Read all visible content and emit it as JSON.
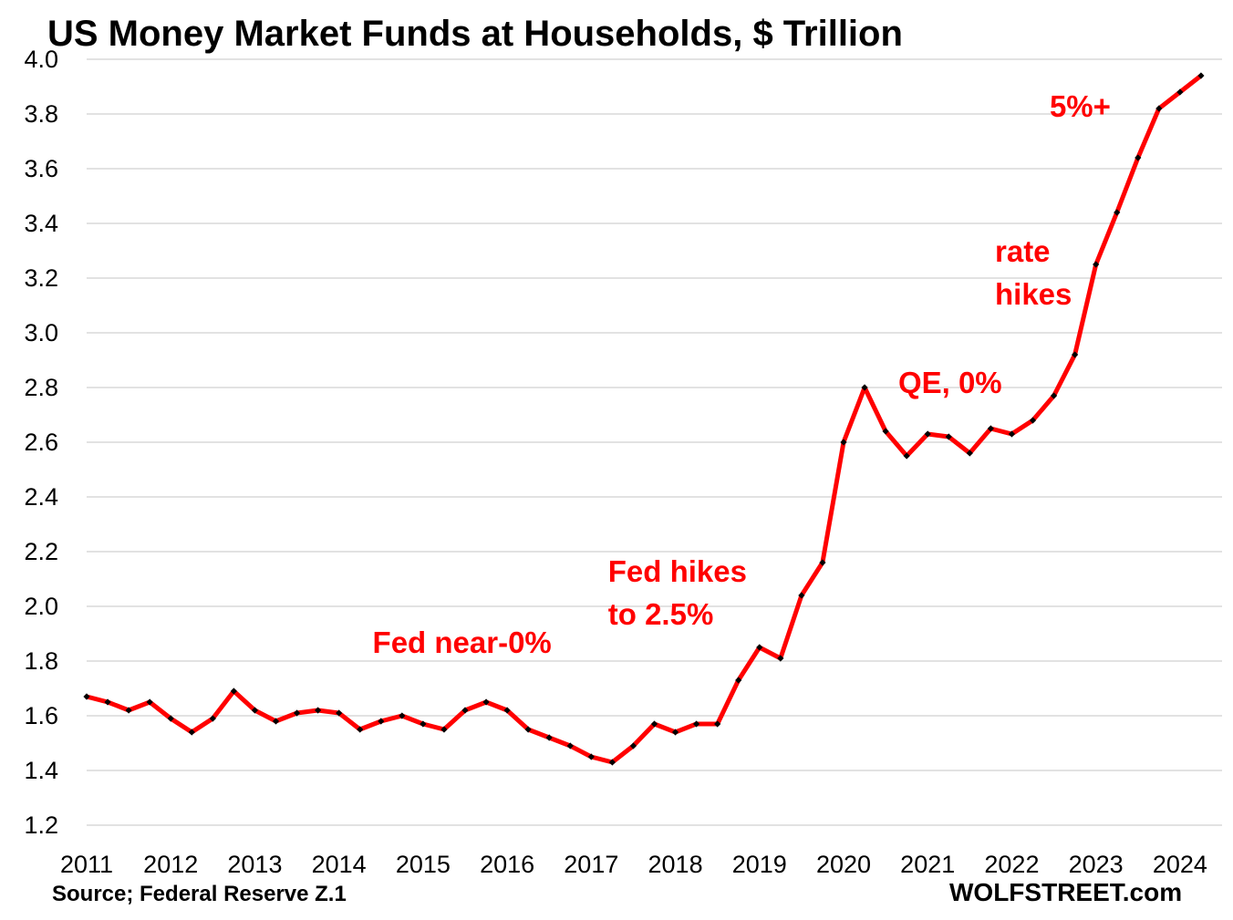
{
  "chart_data": {
    "type": "line",
    "title": "US Money Market Funds at Households, $ Trillion",
    "xlabel": "",
    "ylabel": "",
    "ylim": [
      1.2,
      4.0
    ],
    "yticks": [
      "1.2",
      "1.4",
      "1.6",
      "1.8",
      "2.0",
      "2.2",
      "2.4",
      "2.6",
      "2.8",
      "3.0",
      "3.2",
      "3.4",
      "3.6",
      "3.8",
      "4.0"
    ],
    "xlim": [
      2011,
      2024.5
    ],
    "xticks": [
      "2011",
      "2012",
      "2013",
      "2014",
      "2015",
      "2016",
      "2017",
      "2018",
      "2019",
      "2020",
      "2021",
      "2022",
      "2023",
      "2024"
    ],
    "grid": "horizontal",
    "line_color": "#ff0000",
    "marker_color": "#000000",
    "series": [
      {
        "x": [
          2011.0,
          2011.25,
          2011.5,
          2011.75,
          2012.0,
          2012.25,
          2012.5,
          2012.75,
          2013.0,
          2013.25,
          2013.5,
          2013.75,
          2014.0,
          2014.25,
          2014.5,
          2014.75,
          2015.0,
          2015.25,
          2015.5,
          2015.75,
          2016.0,
          2016.25,
          2016.5,
          2016.75,
          2017.0,
          2017.25,
          2017.5,
          2017.75,
          2018.0,
          2018.25,
          2018.5,
          2018.75,
          2019.0,
          2019.25,
          2019.5,
          2019.75,
          2020.0,
          2020.25,
          2020.5,
          2020.75,
          2021.0,
          2021.25,
          2021.5,
          2021.75,
          2022.0,
          2022.25,
          2022.5,
          2022.75,
          2023.0,
          2023.25,
          2023.5,
          2023.75,
          2024.0,
          2024.25
        ],
        "values": [
          1.67,
          1.65,
          1.62,
          1.65,
          1.59,
          1.54,
          1.59,
          1.69,
          1.62,
          1.58,
          1.61,
          1.62,
          1.61,
          1.55,
          1.58,
          1.6,
          1.57,
          1.55,
          1.62,
          1.65,
          1.62,
          1.55,
          1.52,
          1.49,
          1.45,
          1.43,
          1.49,
          1.57,
          1.54,
          1.57,
          1.57,
          1.73,
          1.85,
          1.81,
          2.04,
          2.16,
          2.6,
          2.8,
          2.64,
          2.55,
          2.63,
          2.62,
          2.56,
          2.65,
          2.63,
          2.68,
          2.77,
          2.92,
          3.25,
          3.44,
          3.64,
          3.82,
          3.88,
          3.94
        ]
      }
    ],
    "annotations": [
      {
        "lines": [
          "Fed near-0%"
        ],
        "x": 2014.4,
        "y": 1.83
      },
      {
        "lines": [
          "Fed hikes",
          "to 2.5%"
        ],
        "x": 2017.2,
        "y": 2.09
      },
      {
        "lines": [
          "QE, 0%"
        ],
        "x": 2020.65,
        "y": 2.78
      },
      {
        "lines": [
          "rate",
          "hikes"
        ],
        "x": 2021.8,
        "y": 3.26
      },
      {
        "lines": [
          "5%+"
        ],
        "x": 2022.45,
        "y": 3.79
      }
    ]
  },
  "footer": {
    "source": "Source; Federal Reserve Z.1",
    "brand": "WOLFSTREET.com"
  }
}
